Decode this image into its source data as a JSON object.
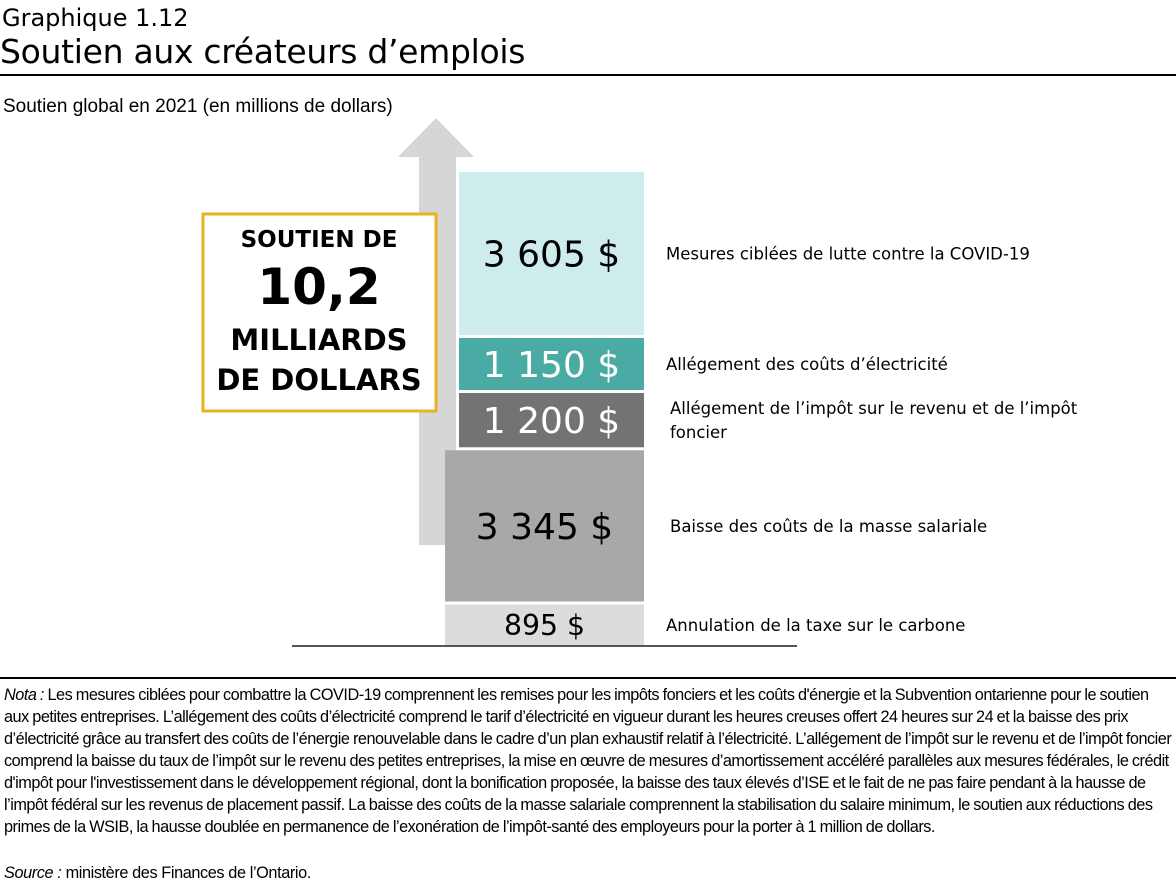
{
  "header": {
    "graph_label": "Graphique 1.12",
    "title": "Soutien aux créateurs d’emplois",
    "subtitle": "Soutien global en 2021 (en millions de dollars)"
  },
  "callout": {
    "line1": "SOUTIEN DE",
    "line2": "10,2",
    "line3": "MILLIARDS",
    "line4": "DE DOLLARS"
  },
  "chart_data": {
    "type": "bar",
    "stacked": true,
    "segments": [
      {
        "value": 895,
        "value_label": "895 $",
        "label": "Annulation de la taxe sur le carbone",
        "color": "#dcdcdc",
        "text_color": "#000000"
      },
      {
        "value": 3345,
        "value_label": "3 345 $",
        "label": "Baisse des coûts de la masse salariale",
        "color": "#a8a8a8",
        "text_color": "#000000"
      },
      {
        "value": 1200,
        "value_label": "1 200 $",
        "label": "Allégement de l’impôt sur le revenu et de l’impôt foncier",
        "color": "#737373",
        "text_color": "#ffffff"
      },
      {
        "value": 1150,
        "value_label": "1 150 $",
        "label": "Allégement des coûts d’électricité",
        "color": "#4aaaa4",
        "text_color": "#ffffff"
      },
      {
        "value": 3605,
        "value_label": "3 605 $",
        "label": "Mesures ciblées de lutte contre la COVID-19",
        "color": "#cfeced",
        "text_color": "#000000"
      }
    ],
    "colors": {
      "arrow": "#d6d6d6",
      "callout_border": "#e8b321",
      "axis": "#555555"
    }
  },
  "notes": {
    "nota_lead": "Nota :",
    "nota_text": "Les mesures ciblées pour combattre la COVID-19 comprennent les remises pour les impôts fonciers et les coûts d'énergie et la Subvention ontarienne pour le soutien aux petites entreprises. L’allégement des coûts d’électricité comprend le tarif d’électricité en vigueur durant les heures creuses offert 24 heures sur 24 et la baisse des prix d’électricité grâce au transfert des coûts de l’énergie renouvelable dans le cadre d’un plan exhaustif relatif à l’électricité. L’allégement de l’impôt sur le revenu et de l’impôt foncier comprend la baisse du taux de l’impôt sur le revenu des petites entreprises, la mise en œuvre de mesures d’amortissement accéléré parallèles aux mesures fédérales, le crédit d'impôt pour l'investissement dans le développement régional, dont la bonification proposée, la baisse des taux élevés d’ISE et le fait de ne pas faire pendant à la hausse de l’impôt fédéral sur les revenus de placement passif. La baisse des coûts de la masse salariale comprennent la stabilisation du salaire minimum, le soutien aux réductions des primes de la WSIB,  la hausse doublée en permanence de l’exonération de l’impôt-santé des employeurs pour la porter à 1 million de dollars.",
    "source_lead": "Source :",
    "source_text": "ministère des Finances de l’Ontario."
  }
}
